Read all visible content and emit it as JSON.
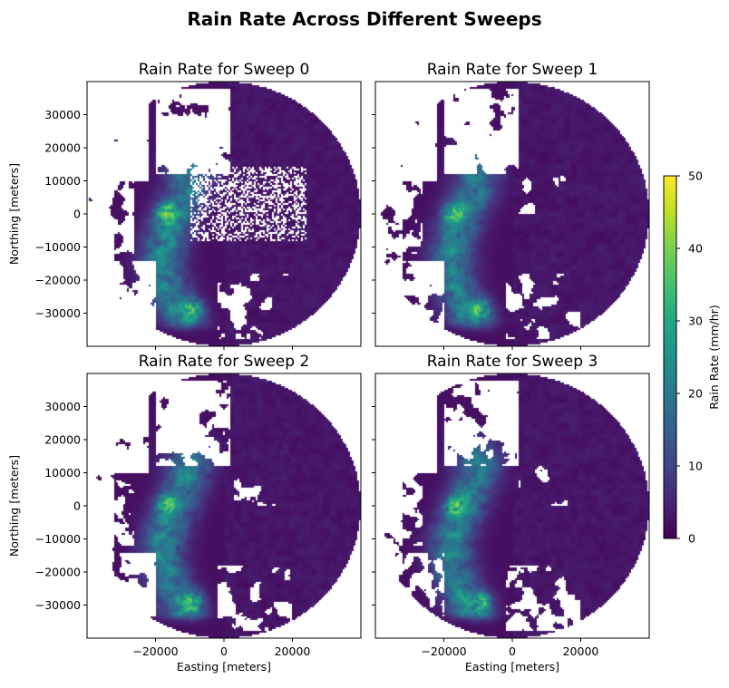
{
  "chart_data": {
    "type": "heatmap",
    "title": "Rain Rate Across Different Sweeps",
    "panels": [
      {
        "title": "Rain Rate for Sweep 0",
        "sweep": 0
      },
      {
        "title": "Rain Rate for Sweep 1",
        "sweep": 1
      },
      {
        "title": "Rain Rate for Sweep 2",
        "sweep": 2
      },
      {
        "title": "Rain Rate for Sweep 3",
        "sweep": 3
      }
    ],
    "xlabel": "Easting [meters]",
    "ylabel": "Northing [meters]",
    "xlim": [
      -40000,
      40000
    ],
    "ylim": [
      -40000,
      40000
    ],
    "xticks": [
      -20000,
      0,
      20000
    ],
    "xtick_labels": [
      "−20000",
      "0",
      "20000"
    ],
    "yticks": [
      30000,
      20000,
      10000,
      0,
      -10000,
      -20000,
      -30000
    ],
    "ytick_labels": [
      "30000",
      "20000",
      "10000",
      "0",
      "−10000",
      "−20000",
      "−30000"
    ],
    "colorbar": {
      "label": "Rain Rate (mm/hr)",
      "min": 0,
      "max": 50,
      "ticks": [
        0,
        10,
        20,
        30,
        40,
        50
      ],
      "tick_labels": [
        "0",
        "10",
        "20",
        "30",
        "40",
        "50"
      ],
      "colormap": "viridis"
    },
    "radar_range_m": 40000,
    "grid": false
  }
}
